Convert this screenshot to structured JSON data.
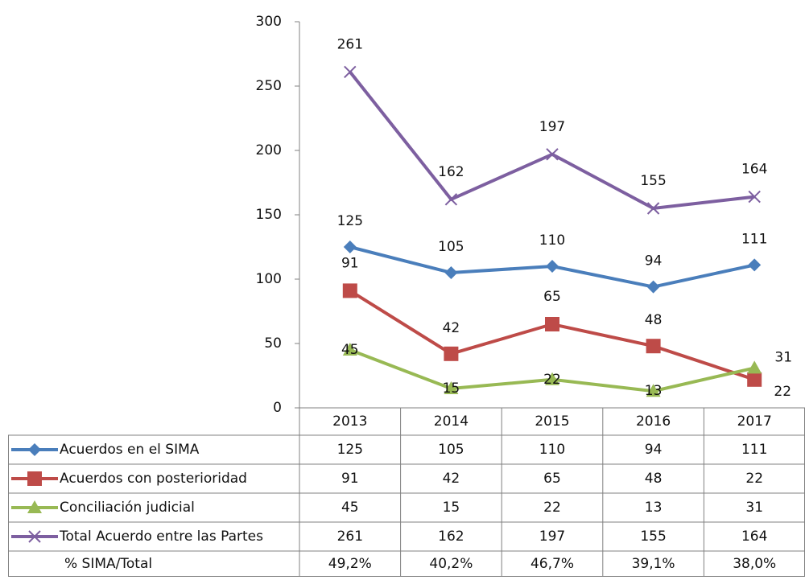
{
  "chart_data": {
    "type": "line",
    "categories": [
      "2013",
      "2014",
      "2015",
      "2016",
      "2017"
    ],
    "ylim": [
      0,
      300
    ],
    "yticks": [
      0,
      50,
      100,
      150,
      200,
      250,
      300
    ],
    "series": [
      {
        "name": "Acuerdos en el SIMA",
        "color": "#4a7ebb",
        "marker": "diamond",
        "values": [
          125,
          105,
          110,
          94,
          111
        ]
      },
      {
        "name": "Acuerdos con posterioridad",
        "color": "#be4b48",
        "marker": "square",
        "values": [
          91,
          42,
          65,
          48,
          22
        ]
      },
      {
        "name": "Conciliación judicial",
        "color": "#98b954",
        "marker": "triangle",
        "values": [
          45,
          15,
          22,
          13,
          31
        ]
      },
      {
        "name": "Total Acuerdo entre las Partes",
        "color": "#7d5fa0",
        "marker": "x",
        "values": [
          261,
          162,
          197,
          155,
          164
        ]
      }
    ],
    "ratio_row": {
      "name": "% SIMA/Total",
      "values": [
        49.2,
        40.2,
        46.7,
        39.1,
        38.0
      ],
      "value_labels": [
        "49,2%",
        "40,2%",
        "46,7%",
        "39,1%",
        "38,0%"
      ]
    }
  }
}
